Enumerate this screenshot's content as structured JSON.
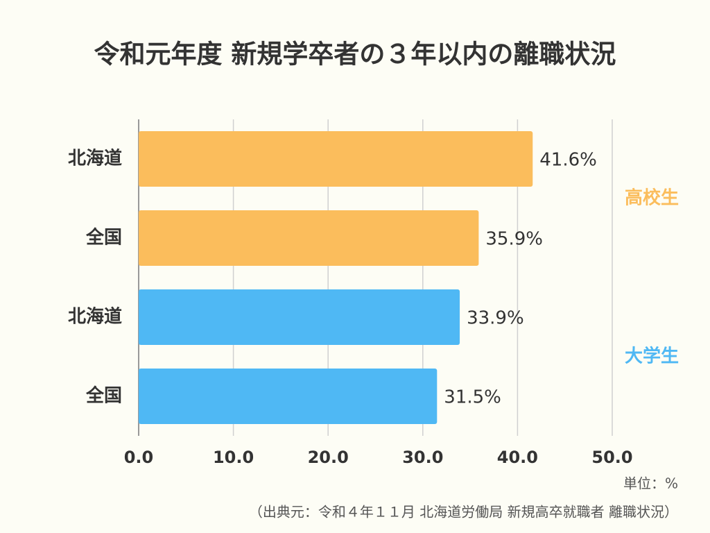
{
  "chart_data": {
    "type": "bar",
    "orientation": "horizontal",
    "title": "令和元年度 新規学卒者の３年以内の離職状況",
    "groups": [
      {
        "name": "高校生",
        "color": "#fbbd5c",
        "categories": [
          "北海道",
          "全国"
        ],
        "values": [
          41.6,
          35.9
        ],
        "value_labels": [
          "41.6%",
          "35.9%"
        ]
      },
      {
        "name": "大学生",
        "color": "#4fb8f4",
        "categories": [
          "北海道",
          "全国"
        ],
        "values": [
          33.9,
          31.5
        ],
        "value_labels": [
          "33.9%",
          "31.5%"
        ]
      }
    ],
    "xlim": [
      0,
      50
    ],
    "xticks": [
      {
        "value": 0,
        "label": "0.0"
      },
      {
        "value": 10,
        "label": "10.0"
      },
      {
        "value": 20,
        "label": "20.0"
      },
      {
        "value": 30,
        "label": "30.0"
      },
      {
        "value": 40,
        "label": "40.0"
      },
      {
        "value": 50,
        "label": "50.0"
      }
    ],
    "grid": true,
    "unit_note": "単位：%",
    "source": "（出典元：令和４年１１月 北海道労働局 新規高卒就職者 離職状況）"
  }
}
